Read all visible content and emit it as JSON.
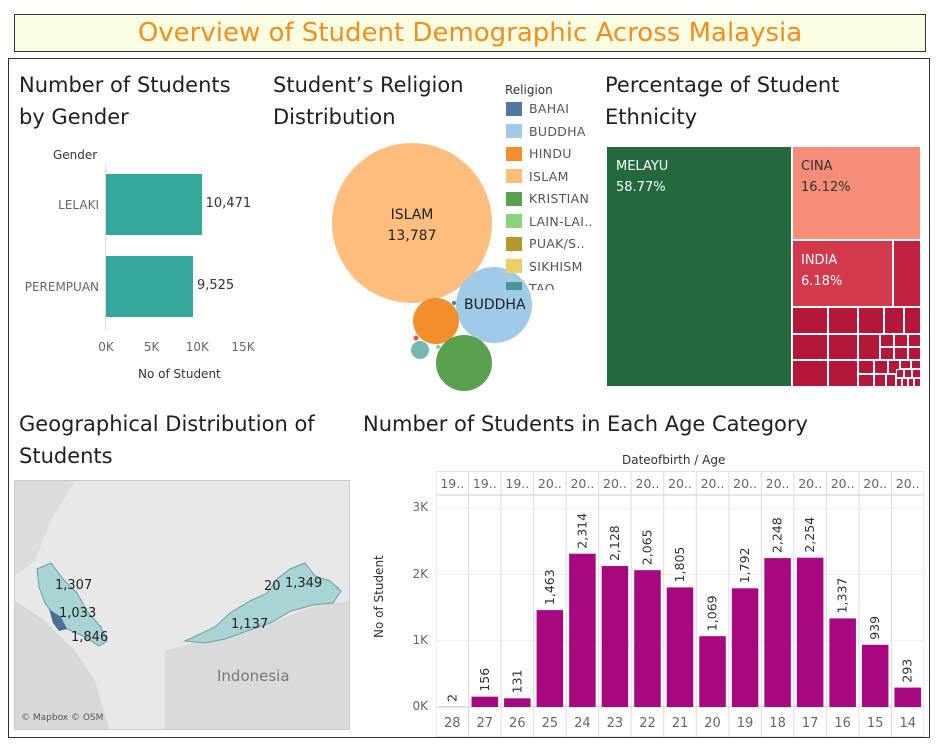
{
  "title": "Overview of Student Demographic Across Malaysia",
  "gender": {
    "title_line1": "Number of Students",
    "title_line2": "by Gender",
    "header": "Gender",
    "xlabel": "No of Student",
    "ticks": [
      "0K",
      "5K",
      "10K",
      "15K"
    ]
  },
  "religion": {
    "title_line1": "Student’s Religion",
    "title_line2": "Distribution",
    "legend_title": "Religion",
    "islam_label": "ISLAM",
    "islam_value": "13,787",
    "buddha_label": "BUDDHA"
  },
  "ethnicity": {
    "title_line1": "Percentage of Student",
    "title_line2": "Ethnicity"
  },
  "geo": {
    "title_line1": "Geographical Distribution of",
    "title_line2": "Students",
    "labels": [
      "1,307",
      "1,033",
      "1,846",
      "1,137",
      "20",
      "1,349"
    ],
    "country": "Indonesia",
    "attribution": "© Mapbox © OSM"
  },
  "age": {
    "title": "Number of Students in Each Age Category",
    "header": "Dateofbirth / Age",
    "ylabel": "No of Student",
    "yticks": [
      "3K",
      "2K",
      "1K",
      "0K"
    ]
  },
  "colors": {
    "title": "#f28e1c",
    "gender_bar": "#36a79b",
    "age_bar": "#a8087f",
    "islam": "#ffbe7d",
    "buddha": "#a0cbe8",
    "hindu": "#f28e2b",
    "kristian": "#59a14f",
    "melayu": "#23693d",
    "cina": "#f58d79",
    "india": "#d3394c",
    "others": "#b5173b"
  },
  "chart_data": [
    {
      "type": "bar",
      "orientation": "horizontal",
      "categories": [
        "LELAKI",
        "PEREMPUAN"
      ],
      "values": [
        10471,
        9525
      ],
      "value_labels": [
        "10,471",
        "9,525"
      ],
      "xlabel": "No of Student",
      "xlim": [
        0,
        15000
      ]
    },
    {
      "type": "bubble",
      "legend": [
        "BAHAI",
        "BUDDHA",
        "HINDU",
        "ISLAM",
        "KRISTIAN",
        "LAIN-LAI..",
        "PUAK/S..",
        "SIKHISM",
        "TAO"
      ],
      "legend_colors": [
        "#4e79a7",
        "#a0cbe8",
        "#f28e2b",
        "#ffbe7d",
        "#59a14f",
        "#8cd17d",
        "#b6992d",
        "#f1ce63",
        "#499894"
      ],
      "labeled": [
        {
          "name": "ISLAM",
          "value": 13787
        }
      ]
    },
    {
      "type": "treemap",
      "segments": [
        {
          "name": "MELAYU",
          "percent": "58.77%"
        },
        {
          "name": "CINA",
          "percent": "16.12%"
        },
        {
          "name": "INDIA",
          "percent": "6.18%"
        }
      ]
    },
    {
      "type": "bar",
      "categories": [
        "28",
        "27",
        "26",
        "25",
        "24",
        "23",
        "22",
        "21",
        "20",
        "19",
        "18",
        "17",
        "16",
        "15",
        "14"
      ],
      "header_labels": [
        "19..",
        "19..",
        "19..",
        "20..",
        "20..",
        "20..",
        "20..",
        "20..",
        "20..",
        "20..",
        "20..",
        "20..",
        "20..",
        "20..",
        "20.."
      ],
      "values": [
        2,
        156,
        131,
        1463,
        2314,
        2128,
        2065,
        1805,
        1069,
        1792,
        2248,
        2254,
        1337,
        939,
        293
      ],
      "value_labels": [
        "2",
        "156",
        "131",
        "1,463",
        "2,314",
        "2,128",
        "2,065",
        "1,805",
        "1,069",
        "1,792",
        "2,248",
        "2,254",
        "1,337",
        "939",
        "293"
      ],
      "ylabel": "No of Student",
      "ylim": [
        0,
        3000
      ]
    }
  ]
}
